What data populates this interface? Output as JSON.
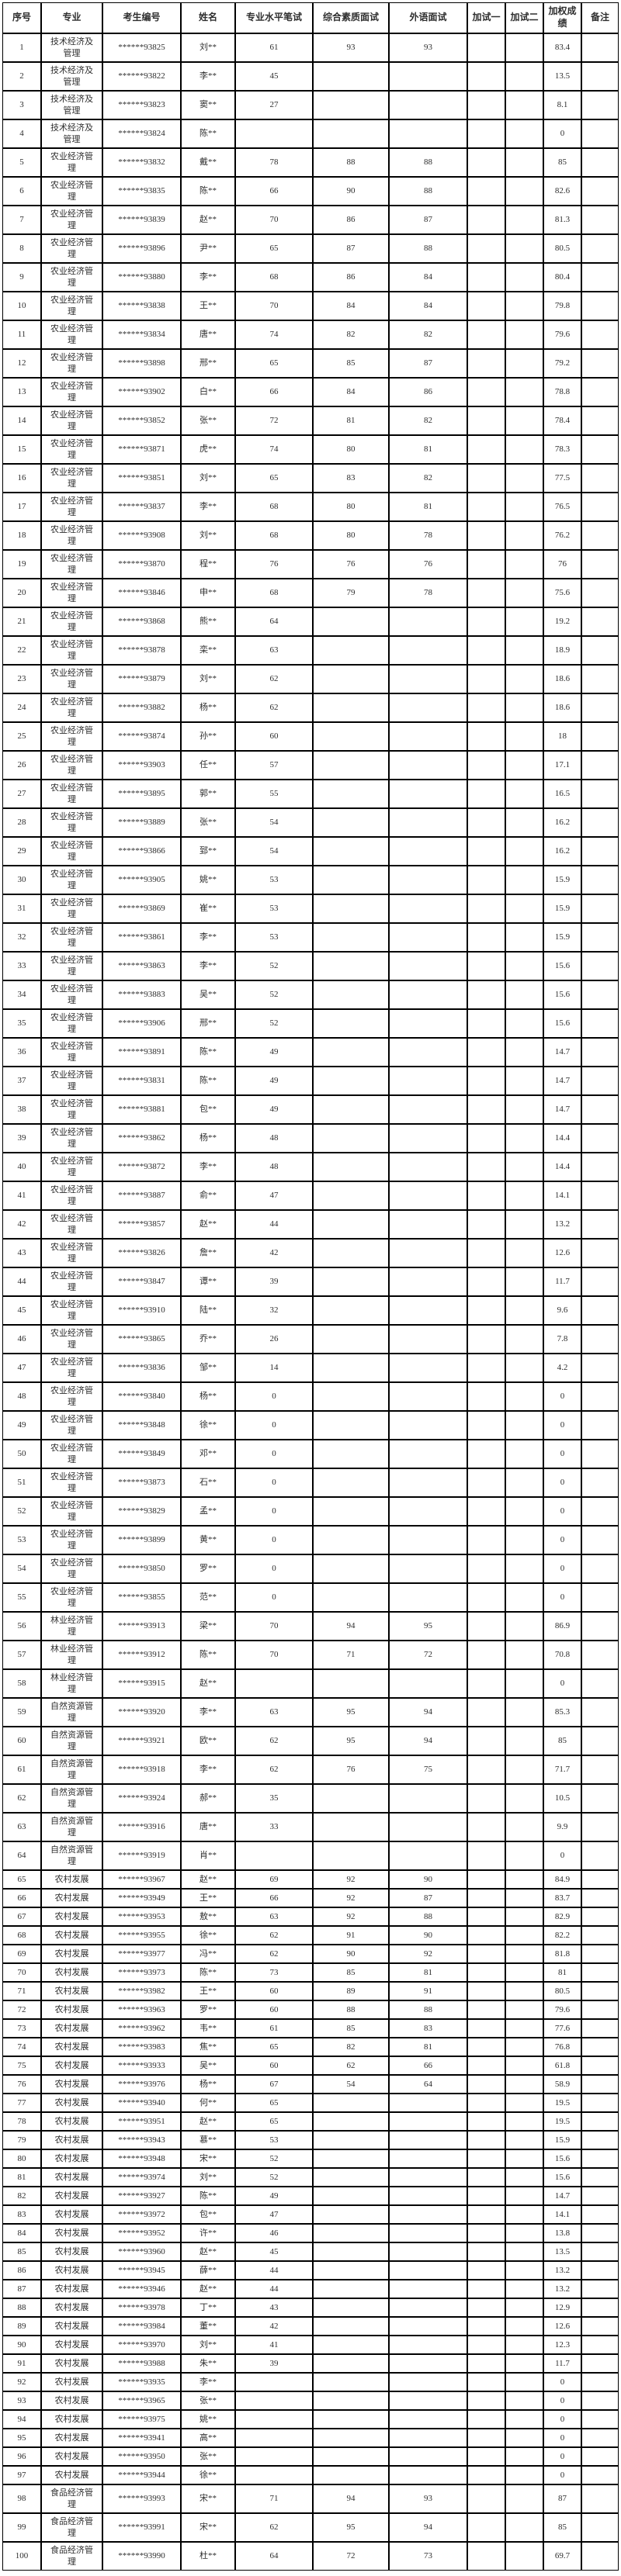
{
  "colors": {
    "border": "#000000",
    "text": "#2e2e2e",
    "background": "#ffffff"
  },
  "table": {
    "columns": [
      {
        "key": "index",
        "label": "序号"
      },
      {
        "key": "major",
        "label": "专业"
      },
      {
        "key": "candidate_no",
        "label": "考生编号"
      },
      {
        "key": "name",
        "label": "姓名"
      },
      {
        "key": "written_test",
        "label": "专业水平笔试"
      },
      {
        "key": "comprehensive_interview",
        "label": "综合素质面试"
      },
      {
        "key": "foreign_language_interview",
        "label": "外语面试"
      },
      {
        "key": "extra_test_1",
        "label": "加试一"
      },
      {
        "key": "extra_test_2",
        "label": "加试二"
      },
      {
        "key": "weighted_score",
        "label": "加权成绩"
      },
      {
        "key": "remarks",
        "label": "备注"
      }
    ],
    "rows": [
      [
        "1",
        "技术经济及管理",
        "******93825",
        "刘**",
        "61",
        "93",
        "93",
        "",
        "",
        "83.4",
        ""
      ],
      [
        "2",
        "技术经济及管理",
        "******93822",
        "李**",
        "45",
        "",
        "",
        "",
        "",
        "13.5",
        ""
      ],
      [
        "3",
        "技术经济及管理",
        "******93823",
        "窦**",
        "27",
        "",
        "",
        "",
        "",
        "8.1",
        ""
      ],
      [
        "4",
        "技术经济及管理",
        "******93824",
        "陈**",
        "",
        "",
        "",
        "",
        "",
        "0",
        ""
      ],
      [
        "5",
        "农业经济管理",
        "******93832",
        "戴**",
        "78",
        "88",
        "88",
        "",
        "",
        "85",
        ""
      ],
      [
        "6",
        "农业经济管理",
        "******93835",
        "陈**",
        "66",
        "90",
        "88",
        "",
        "",
        "82.6",
        ""
      ],
      [
        "7",
        "农业经济管理",
        "******93839",
        "赵**",
        "70",
        "86",
        "87",
        "",
        "",
        "81.3",
        ""
      ],
      [
        "8",
        "农业经济管理",
        "******93896",
        "尹**",
        "65",
        "87",
        "88",
        "",
        "",
        "80.5",
        ""
      ],
      [
        "9",
        "农业经济管理",
        "******93880",
        "李**",
        "68",
        "86",
        "84",
        "",
        "",
        "80.4",
        ""
      ],
      [
        "10",
        "农业经济管理",
        "******93838",
        "王**",
        "70",
        "84",
        "84",
        "",
        "",
        "79.8",
        ""
      ],
      [
        "11",
        "农业经济管理",
        "******93834",
        "唐**",
        "74",
        "82",
        "82",
        "",
        "",
        "79.6",
        ""
      ],
      [
        "12",
        "农业经济管理",
        "******93898",
        "邢**",
        "65",
        "85",
        "87",
        "",
        "",
        "79.2",
        ""
      ],
      [
        "13",
        "农业经济管理",
        "******93902",
        "白**",
        "66",
        "84",
        "86",
        "",
        "",
        "78.8",
        ""
      ],
      [
        "14",
        "农业经济管理",
        "******93852",
        "张**",
        "72",
        "81",
        "82",
        "",
        "",
        "78.4",
        ""
      ],
      [
        "15",
        "农业经济管理",
        "******93871",
        "虎**",
        "74",
        "80",
        "81",
        "",
        "",
        "78.3",
        ""
      ],
      [
        "16",
        "农业经济管理",
        "******93851",
        "刘**",
        "65",
        "83",
        "82",
        "",
        "",
        "77.5",
        ""
      ],
      [
        "17",
        "农业经济管理",
        "******93837",
        "李**",
        "68",
        "80",
        "81",
        "",
        "",
        "76.5",
        ""
      ],
      [
        "18",
        "农业经济管理",
        "******93908",
        "刘**",
        "68",
        "80",
        "78",
        "",
        "",
        "76.2",
        ""
      ],
      [
        "19",
        "农业经济管理",
        "******93870",
        "程**",
        "76",
        "76",
        "76",
        "",
        "",
        "76",
        ""
      ],
      [
        "20",
        "农业经济管理",
        "******93846",
        "申**",
        "68",
        "79",
        "78",
        "",
        "",
        "75.6",
        ""
      ],
      [
        "21",
        "农业经济管理",
        "******93868",
        "熊**",
        "64",
        "",
        "",
        "",
        "",
        "19.2",
        ""
      ],
      [
        "22",
        "农业经济管理",
        "******93878",
        "栾**",
        "63",
        "",
        "",
        "",
        "",
        "18.9",
        ""
      ],
      [
        "23",
        "农业经济管理",
        "******93879",
        "刘**",
        "62",
        "",
        "",
        "",
        "",
        "18.6",
        ""
      ],
      [
        "24",
        "农业经济管理",
        "******93882",
        "杨**",
        "62",
        "",
        "",
        "",
        "",
        "18.6",
        ""
      ],
      [
        "25",
        "农业经济管理",
        "******93874",
        "孙**",
        "60",
        "",
        "",
        "",
        "",
        "18",
        ""
      ],
      [
        "26",
        "农业经济管理",
        "******93903",
        "任**",
        "57",
        "",
        "",
        "",
        "",
        "17.1",
        ""
      ],
      [
        "27",
        "农业经济管理",
        "******93895",
        "郭**",
        "55",
        "",
        "",
        "",
        "",
        "16.5",
        ""
      ],
      [
        "28",
        "农业经济管理",
        "******93889",
        "张**",
        "54",
        "",
        "",
        "",
        "",
        "16.2",
        ""
      ],
      [
        "29",
        "农业经济管理",
        "******93866",
        "郅**",
        "54",
        "",
        "",
        "",
        "",
        "16.2",
        ""
      ],
      [
        "30",
        "农业经济管理",
        "******93905",
        "姚**",
        "53",
        "",
        "",
        "",
        "",
        "15.9",
        ""
      ],
      [
        "31",
        "农业经济管理",
        "******93869",
        "崔**",
        "53",
        "",
        "",
        "",
        "",
        "15.9",
        ""
      ],
      [
        "32",
        "农业经济管理",
        "******93861",
        "李**",
        "53",
        "",
        "",
        "",
        "",
        "15.9",
        ""
      ],
      [
        "33",
        "农业经济管理",
        "******93863",
        "李**",
        "52",
        "",
        "",
        "",
        "",
        "15.6",
        ""
      ],
      [
        "34",
        "农业经济管理",
        "******93883",
        "吴**",
        "52",
        "",
        "",
        "",
        "",
        "15.6",
        ""
      ],
      [
        "35",
        "农业经济管理",
        "******93906",
        "邢**",
        "52",
        "",
        "",
        "",
        "",
        "15.6",
        ""
      ],
      [
        "36",
        "农业经济管理",
        "******93891",
        "陈**",
        "49",
        "",
        "",
        "",
        "",
        "14.7",
        ""
      ],
      [
        "37",
        "农业经济管理",
        "******93831",
        "陈**",
        "49",
        "",
        "",
        "",
        "",
        "14.7",
        ""
      ],
      [
        "38",
        "农业经济管理",
        "******93881",
        "包**",
        "49",
        "",
        "",
        "",
        "",
        "14.7",
        ""
      ],
      [
        "39",
        "农业经济管理",
        "******93862",
        "杨**",
        "48",
        "",
        "",
        "",
        "",
        "14.4",
        ""
      ],
      [
        "40",
        "农业经济管理",
        "******93872",
        "李**",
        "48",
        "",
        "",
        "",
        "",
        "14.4",
        ""
      ],
      [
        "41",
        "农业经济管理",
        "******93887",
        "俞**",
        "47",
        "",
        "",
        "",
        "",
        "14.1",
        ""
      ],
      [
        "42",
        "农业经济管理",
        "******93857",
        "赵**",
        "44",
        "",
        "",
        "",
        "",
        "13.2",
        ""
      ],
      [
        "43",
        "农业经济管理",
        "******93826",
        "詹**",
        "42",
        "",
        "",
        "",
        "",
        "12.6",
        ""
      ],
      [
        "44",
        "农业经济管理",
        "******93847",
        "谭**",
        "39",
        "",
        "",
        "",
        "",
        "11.7",
        ""
      ],
      [
        "45",
        "农业经济管理",
        "******93910",
        "陆**",
        "32",
        "",
        "",
        "",
        "",
        "9.6",
        ""
      ],
      [
        "46",
        "农业经济管理",
        "******93865",
        "乔**",
        "26",
        "",
        "",
        "",
        "",
        "7.8",
        ""
      ],
      [
        "47",
        "农业经济管理",
        "******93836",
        "邹**",
        "14",
        "",
        "",
        "",
        "",
        "4.2",
        ""
      ],
      [
        "48",
        "农业经济管理",
        "******93840",
        "杨**",
        "0",
        "",
        "",
        "",
        "",
        "0",
        ""
      ],
      [
        "49",
        "农业经济管理",
        "******93848",
        "徐**",
        "0",
        "",
        "",
        "",
        "",
        "0",
        ""
      ],
      [
        "50",
        "农业经济管理",
        "******93849",
        "邓**",
        "0",
        "",
        "",
        "",
        "",
        "0",
        ""
      ],
      [
        "51",
        "农业经济管理",
        "******93873",
        "石**",
        "0",
        "",
        "",
        "",
        "",
        "0",
        ""
      ],
      [
        "52",
        "农业经济管理",
        "******93829",
        "孟**",
        "0",
        "",
        "",
        "",
        "",
        "0",
        ""
      ],
      [
        "53",
        "农业经济管理",
        "******93899",
        "黄**",
        "0",
        "",
        "",
        "",
        "",
        "0",
        ""
      ],
      [
        "54",
        "农业经济管理",
        "******93850",
        "罗**",
        "0",
        "",
        "",
        "",
        "",
        "0",
        ""
      ],
      [
        "55",
        "农业经济管理",
        "******93855",
        "范**",
        "0",
        "",
        "",
        "",
        "",
        "0",
        ""
      ],
      [
        "56",
        "林业经济管理",
        "******93913",
        "梁**",
        "70",
        "94",
        "95",
        "",
        "",
        "86.9",
        ""
      ],
      [
        "57",
        "林业经济管理",
        "******93912",
        "陈**",
        "70",
        "71",
        "72",
        "",
        "",
        "70.8",
        ""
      ],
      [
        "58",
        "林业经济管理",
        "******93915",
        "赵**",
        "",
        "",
        "",
        "",
        "",
        "0",
        ""
      ],
      [
        "59",
        "自然资源管理",
        "******93920",
        "李**",
        "63",
        "95",
        "94",
        "",
        "",
        "85.3",
        ""
      ],
      [
        "60",
        "自然资源管理",
        "******93921",
        "欧**",
        "62",
        "95",
        "94",
        "",
        "",
        "85",
        ""
      ],
      [
        "61",
        "自然资源管理",
        "******93918",
        "李**",
        "62",
        "76",
        "75",
        "",
        "",
        "71.7",
        ""
      ],
      [
        "62",
        "自然资源管理",
        "******93924",
        "郝**",
        "35",
        "",
        "",
        "",
        "",
        "10.5",
        ""
      ],
      [
        "63",
        "自然资源管理",
        "******93916",
        "唐**",
        "33",
        "",
        "",
        "",
        "",
        "9.9",
        ""
      ],
      [
        "64",
        "自然资源管理",
        "******93919",
        "肖**",
        "",
        "",
        "",
        "",
        "",
        "0",
        ""
      ],
      [
        "65",
        "农村发展",
        "******93967",
        "赵**",
        "69",
        "92",
        "90",
        "",
        "",
        "84.9",
        ""
      ],
      [
        "66",
        "农村发展",
        "******93949",
        "王**",
        "66",
        "92",
        "87",
        "",
        "",
        "83.7",
        ""
      ],
      [
        "67",
        "农村发展",
        "******93953",
        "敖**",
        "63",
        "92",
        "88",
        "",
        "",
        "82.9",
        ""
      ],
      [
        "68",
        "农村发展",
        "******93955",
        "徐**",
        "62",
        "91",
        "90",
        "",
        "",
        "82.2",
        ""
      ],
      [
        "69",
        "农村发展",
        "******93977",
        "冯**",
        "62",
        "90",
        "92",
        "",
        "",
        "81.8",
        ""
      ],
      [
        "70",
        "农村发展",
        "******93973",
        "陈**",
        "73",
        "85",
        "81",
        "",
        "",
        "81",
        ""
      ],
      [
        "71",
        "农村发展",
        "******93982",
        "王**",
        "60",
        "89",
        "91",
        "",
        "",
        "80.5",
        ""
      ],
      [
        "72",
        "农村发展",
        "******93963",
        "罗**",
        "60",
        "88",
        "88",
        "",
        "",
        "79.6",
        ""
      ],
      [
        "73",
        "农村发展",
        "******93962",
        "韦**",
        "61",
        "85",
        "83",
        "",
        "",
        "77.6",
        ""
      ],
      [
        "74",
        "农村发展",
        "******93983",
        "焦**",
        "65",
        "82",
        "81",
        "",
        "",
        "76.8",
        ""
      ],
      [
        "75",
        "农村发展",
        "******93933",
        "吴**",
        "60",
        "62",
        "66",
        "",
        "",
        "61.8",
        ""
      ],
      [
        "76",
        "农村发展",
        "******93976",
        "杨**",
        "67",
        "54",
        "64",
        "",
        "",
        "58.9",
        ""
      ],
      [
        "77",
        "农村发展",
        "******93940",
        "何**",
        "65",
        "",
        "",
        "",
        "",
        "19.5",
        ""
      ],
      [
        "78",
        "农村发展",
        "******93951",
        "赵**",
        "65",
        "",
        "",
        "",
        "",
        "19.5",
        ""
      ],
      [
        "79",
        "农村发展",
        "******93943",
        "慕**",
        "53",
        "",
        "",
        "",
        "",
        "15.9",
        ""
      ],
      [
        "80",
        "农村发展",
        "******93948",
        "宋**",
        "52",
        "",
        "",
        "",
        "",
        "15.6",
        ""
      ],
      [
        "81",
        "农村发展",
        "******93974",
        "刘**",
        "52",
        "",
        "",
        "",
        "",
        "15.6",
        ""
      ],
      [
        "82",
        "农村发展",
        "******93927",
        "陈**",
        "49",
        "",
        "",
        "",
        "",
        "14.7",
        ""
      ],
      [
        "83",
        "农村发展",
        "******93972",
        "包**",
        "47",
        "",
        "",
        "",
        "",
        "14.1",
        ""
      ],
      [
        "84",
        "农村发展",
        "******93952",
        "许**",
        "46",
        "",
        "",
        "",
        "",
        "13.8",
        ""
      ],
      [
        "85",
        "农村发展",
        "******93960",
        "赵**",
        "45",
        "",
        "",
        "",
        "",
        "13.5",
        ""
      ],
      [
        "86",
        "农村发展",
        "******93945",
        "薛**",
        "44",
        "",
        "",
        "",
        "",
        "13.2",
        ""
      ],
      [
        "87",
        "农村发展",
        "******93946",
        "赵**",
        "44",
        "",
        "",
        "",
        "",
        "13.2",
        ""
      ],
      [
        "88",
        "农村发展",
        "******93978",
        "丁**",
        "43",
        "",
        "",
        "",
        "",
        "12.9",
        ""
      ],
      [
        "89",
        "农村发展",
        "******93984",
        "董**",
        "42",
        "",
        "",
        "",
        "",
        "12.6",
        ""
      ],
      [
        "90",
        "农村发展",
        "******93970",
        "刘**",
        "41",
        "",
        "",
        "",
        "",
        "12.3",
        ""
      ],
      [
        "91",
        "农村发展",
        "******93988",
        "朱**",
        "39",
        "",
        "",
        "",
        "",
        "11.7",
        ""
      ],
      [
        "92",
        "农村发展",
        "******93935",
        "李**",
        "",
        "",
        "",
        "",
        "",
        "0",
        ""
      ],
      [
        "93",
        "农村发展",
        "******93965",
        "张**",
        "",
        "",
        "",
        "",
        "",
        "0",
        ""
      ],
      [
        "94",
        "农村发展",
        "******93975",
        "姚**",
        "",
        "",
        "",
        "",
        "",
        "0",
        ""
      ],
      [
        "95",
        "农村发展",
        "******93941",
        "高**",
        "",
        "",
        "",
        "",
        "",
        "0",
        ""
      ],
      [
        "96",
        "农村发展",
        "******93950",
        "张**",
        "",
        "",
        "",
        "",
        "",
        "0",
        ""
      ],
      [
        "97",
        "农村发展",
        "******93944",
        "徐**",
        "",
        "",
        "",
        "",
        "",
        "0",
        ""
      ],
      [
        "98",
        "食品经济管理",
        "******93993",
        "宋**",
        "71",
        "94",
        "93",
        "",
        "",
        "87",
        ""
      ],
      [
        "99",
        "食品经济管理",
        "******93991",
        "宋**",
        "62",
        "95",
        "94",
        "",
        "",
        "85",
        ""
      ],
      [
        "100",
        "食品经济管理",
        "******93990",
        "杜**",
        "64",
        "72",
        "73",
        "",
        "",
        "69.7",
        ""
      ]
    ]
  }
}
